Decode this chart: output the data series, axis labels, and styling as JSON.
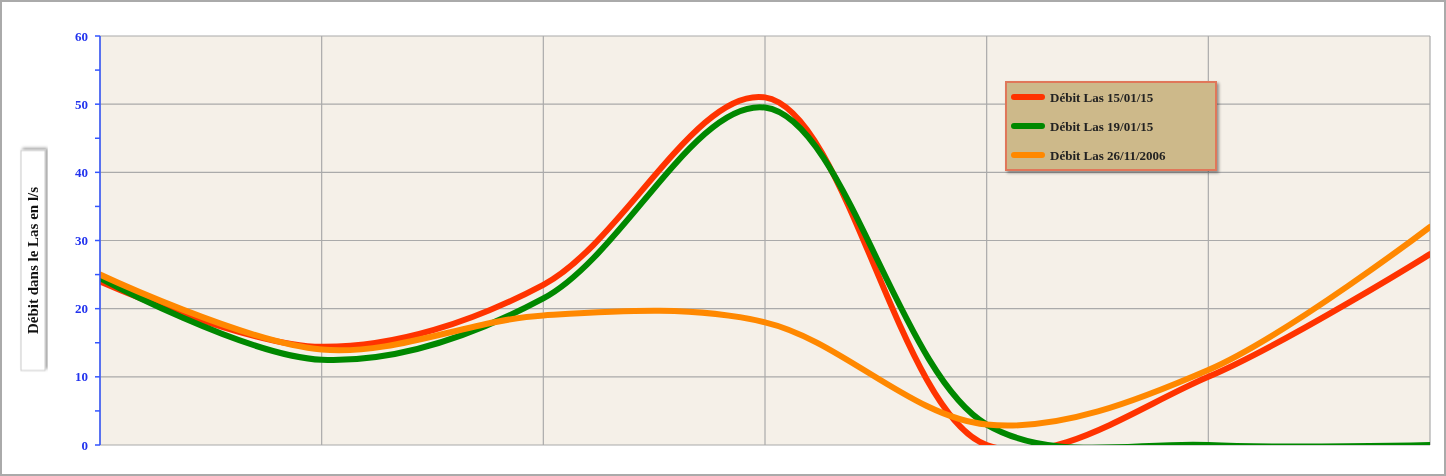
{
  "chart_data": {
    "type": "line",
    "ylabel": "Débit dans le Las en l/s",
    "categories": [
      null,
      null,
      null,
      null,
      null,
      null,
      null
    ],
    "series": [
      {
        "name": "Débit Las 15/01/15",
        "color": "#ff3300",
        "values": [
          24,
          14.4,
          23.5,
          51,
          0,
          10,
          28
        ]
      },
      {
        "name": "Débit Las 19/01/15",
        "color": "#008800",
        "values": [
          24.5,
          12.5,
          21.5,
          49.5,
          3,
          0,
          0
        ]
      },
      {
        "name": "Débit Las 26/11/2006",
        "color": "#ff8800",
        "values": [
          25,
          14,
          19,
          18,
          3,
          11,
          32
        ]
      }
    ],
    "ylim": [
      0,
      60
    ],
    "yticks": [
      0,
      {
        "value": 5,
        "label": null
      },
      10,
      {
        "value": 15,
        "label": null
      },
      20,
      {
        "value": 25,
        "label": null
      },
      30,
      {
        "value": 35,
        "label": null
      },
      40,
      {
        "value": 45,
        "label": null
      },
      50,
      {
        "value": 55,
        "label": null
      },
      60
    ],
    "grid": true,
    "legend": "top right",
    "marker": "none",
    "line_style": "solid"
  }
}
